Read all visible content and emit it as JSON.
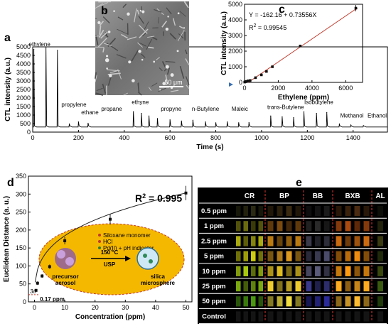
{
  "panels": [
    "a",
    "b",
    "c",
    "d",
    "e"
  ],
  "chart_data": [
    {
      "panel": "a",
      "type": "line",
      "xlabel": "Time (s)",
      "ylabel": "CTL intensity (a.u.)",
      "xlim": [
        0,
        1550
      ],
      "ylim": [
        0,
        5000
      ],
      "xticks": [
        0,
        200,
        400,
        600,
        800,
        1000,
        1200,
        1400
      ],
      "yticks": [
        0,
        500,
        1000,
        1500,
        2000,
        2500,
        3000,
        3500,
        4000,
        4500,
        5000
      ],
      "baseline": 300,
      "peaks": [
        {
          "t": 5,
          "h": 4850
        },
        {
          "t": 58,
          "h": 4950
        },
        {
          "t": 108,
          "h": 4800
        },
        {
          "t": 160,
          "h": 480
        },
        {
          "t": 200,
          "h": 600
        },
        {
          "t": 242,
          "h": 520
        },
        {
          "t": 440,
          "h": 1200
        },
        {
          "t": 475,
          "h": 1100
        },
        {
          "t": 508,
          "h": 950
        },
        {
          "t": 545,
          "h": 800
        },
        {
          "t": 600,
          "h": 720
        },
        {
          "t": 650,
          "h": 650
        },
        {
          "t": 700,
          "h": 700
        },
        {
          "t": 755,
          "h": 600
        },
        {
          "t": 800,
          "h": 550
        },
        {
          "t": 850,
          "h": 600
        },
        {
          "t": 900,
          "h": 550
        },
        {
          "t": 945,
          "h": 560
        },
        {
          "t": 1040,
          "h": 950
        },
        {
          "t": 1090,
          "h": 900
        },
        {
          "t": 1140,
          "h": 850
        },
        {
          "t": 1185,
          "h": 1200
        },
        {
          "t": 1240,
          "h": 1100
        },
        {
          "t": 1285,
          "h": 1150
        },
        {
          "t": 1340,
          "h": 460
        },
        {
          "t": 1390,
          "h": 420
        },
        {
          "t": 1445,
          "h": 380
        }
      ],
      "annotations": [
        {
          "text": "ethylene",
          "x": 30,
          "y": 5050
        },
        {
          "text": "propylene",
          "x": 180,
          "y": 1500
        },
        {
          "text": "ethane",
          "x": 250,
          "y": 1050
        },
        {
          "text": "propane",
          "x": 345,
          "y": 1250
        },
        {
          "text": "ethyne",
          "x": 470,
          "y": 1650
        },
        {
          "text": "propyne",
          "x": 605,
          "y": 1250
        },
        {
          "text": "n-Butylene",
          "x": 755,
          "y": 1250
        },
        {
          "text": "Maleic",
          "x": 905,
          "y": 1250
        },
        {
          "text": "trans-Butylene",
          "x": 1105,
          "y": 1350
        },
        {
          "text": "Isobutylene",
          "x": 1250,
          "y": 1650
        },
        {
          "text": "Methanol",
          "x": 1395,
          "y": 850
        },
        {
          "text": "Ethanol",
          "x": 1505,
          "y": 850
        }
      ]
    },
    {
      "panel": "b",
      "type": "image",
      "scale_bar": "50 μm"
    },
    {
      "panel": "c",
      "type": "scatter",
      "xlabel": "Ethylene (ppm)",
      "ylabel": "CTL intensity (a.u.)",
      "xlim": [
        0,
        7000
      ],
      "ylim": [
        0,
        5000
      ],
      "xticks": [
        0,
        2000,
        4000,
        6000
      ],
      "yticks": [
        0,
        1000,
        2000,
        3000,
        4000,
        5000
      ],
      "equation": "Y = -162.16 + 0.73556X",
      "r2_label": "R",
      "r2_value": " = 0.99545",
      "fit": {
        "intercept": -162.16,
        "slope": 0.73556
      },
      "points": [
        {
          "x": 10,
          "y": 20
        },
        {
          "x": 50,
          "y": 40
        },
        {
          "x": 100,
          "y": 60
        },
        {
          "x": 200,
          "y": 100
        },
        {
          "x": 330,
          "y": 120
        },
        {
          "x": 650,
          "y": 300
        },
        {
          "x": 1000,
          "y": 480
        },
        {
          "x": 1300,
          "y": 700
        },
        {
          "x": 1650,
          "y": 1000
        },
        {
          "x": 3300,
          "y": 2330
        },
        {
          "x": 6600,
          "y": 4750
        }
      ]
    },
    {
      "panel": "d",
      "type": "scatter",
      "xlabel": "Concentration (ppm)",
      "ylabel": "Euclidean Distance (a. u.)",
      "xlim": [
        -2,
        52
      ],
      "ylim": [
        0,
        350
      ],
      "xticks": [
        0,
        10,
        20,
        30,
        40,
        50
      ],
      "yticks": [
        0,
        50,
        100,
        150,
        200,
        250,
        300,
        350
      ],
      "r2_label": "R",
      "r2_value": " = 0.995",
      "sigma_label": "3σ",
      "lod_label": "0.17 ppm",
      "points": [
        {
          "x": 0.5,
          "y": 32,
          "err": 4
        },
        {
          "x": 1,
          "y": 52,
          "err": 5
        },
        {
          "x": 2.5,
          "y": 72,
          "err": 5
        },
        {
          "x": 5,
          "y": 98,
          "err": 6
        },
        {
          "x": 10,
          "y": 170,
          "err": 10
        },
        {
          "x": 25,
          "y": 230,
          "err": 15
        },
        {
          "x": 50,
          "y": 303,
          "err": 20
        }
      ],
      "inset": {
        "legend": [
          "Siloxane monomer",
          "HCl",
          "Pd(II) + pH indicator"
        ],
        "temp_label": "150 °C",
        "method_label": "USP",
        "left_label": [
          "precursor",
          "aerosol"
        ],
        "right_label": [
          "silica",
          "microsphere"
        ]
      }
    },
    {
      "panel": "e",
      "type": "table",
      "columns": [
        "CR",
        "BP",
        "BB",
        "BXB",
        "AL"
      ],
      "rows": [
        "0.5 ppm",
        "1 ppm",
        "2.5 ppm",
        "5 ppm",
        "10 ppm",
        "25 ppm",
        "50 ppm",
        "Control"
      ]
    }
  ]
}
